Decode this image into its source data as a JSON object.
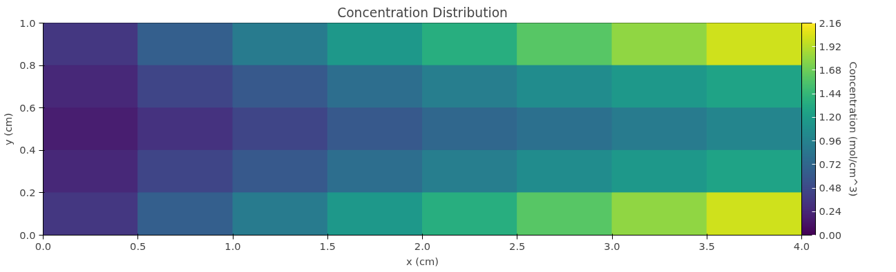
{
  "chart_data": {
    "type": "heatmap",
    "title": "Concentration Distribution",
    "xlabel": "x (cm)",
    "ylabel": "y (cm)",
    "clabel": "Concentration (mol/cm^3)",
    "x": [
      0.25,
      0.75,
      1.25,
      1.75,
      2.25,
      2.75,
      3.25,
      3.75
    ],
    "y": [
      0.9,
      0.7,
      0.5,
      0.3,
      0.1
    ],
    "cells": [
      [
        0.35,
        0.65,
        0.9,
        1.15,
        1.35,
        1.6,
        1.8,
        2.0
      ],
      [
        0.25,
        0.45,
        0.6,
        0.78,
        0.92,
        1.05,
        1.15,
        1.25
      ],
      [
        0.18,
        0.32,
        0.45,
        0.6,
        0.72,
        0.8,
        0.9,
        0.98
      ],
      [
        0.25,
        0.45,
        0.6,
        0.78,
        0.92,
        1.05,
        1.15,
        1.25
      ],
      [
        0.35,
        0.65,
        0.9,
        1.15,
        1.35,
        1.6,
        1.8,
        2.0
      ]
    ],
    "xlim": [
      0.0,
      4.0
    ],
    "ylim": [
      0.0,
      1.0
    ],
    "xticks": [
      {
        "value": 0,
        "label": "0.0"
      },
      0.5,
      {
        "value": 1,
        "label": "1.0"
      },
      1.5,
      {
        "value": 2,
        "label": "2.0"
      },
      2.5,
      {
        "value": 3,
        "label": "3.0"
      },
      3.5,
      {
        "value": 4,
        "label": "4.0"
      }
    ],
    "yticks": [
      {
        "value": 0,
        "label": "0.0"
      },
      0.2,
      0.4,
      0.6,
      0.8,
      {
        "value": 1,
        "label": "1.0"
      }
    ],
    "clim": [
      0.0,
      2.16
    ],
    "cticks": [
      {
        "value": 0,
        "label": "0.00"
      },
      0.24,
      0.48,
      0.72,
      0.96,
      {
        "value": 1.2,
        "label": "1.20"
      },
      1.44,
      1.68,
      1.92,
      2.16
    ]
  }
}
